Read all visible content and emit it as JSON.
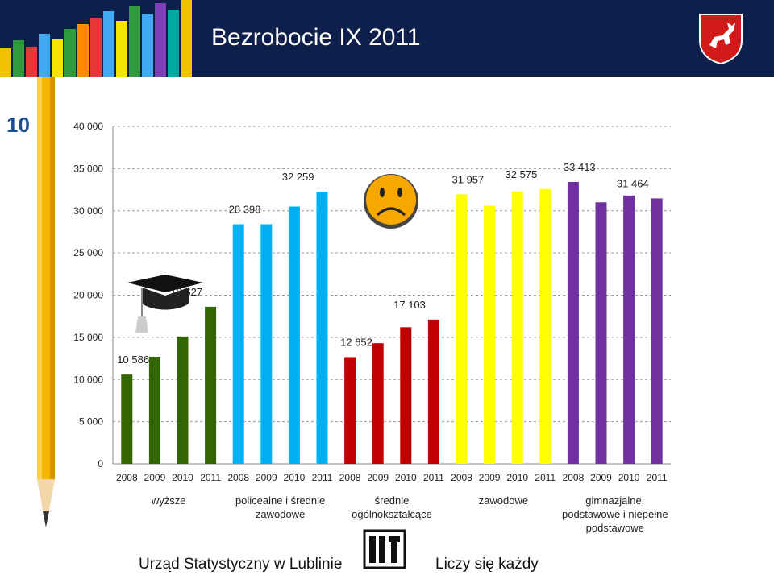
{
  "header": {
    "title": "Bezrobocie IX 2011"
  },
  "slide_number": "10",
  "footer": {
    "left": "Urząd Statystyczny w Lublinie",
    "right": "Liczy się każdy"
  },
  "colors": {
    "header_bg": "#0f1f4b",
    "green": "#336600",
    "blue": "#00b0f0",
    "red": "#c00000",
    "yellow": "#ffff00",
    "purple": "#7030a0"
  },
  "icons": [
    "graduation-cap-icon",
    "sad-face-icon",
    "voivodeship-crest-icon",
    "ustat-logo-icon"
  ],
  "chart_data": {
    "type": "bar",
    "ylim": [
      0,
      40000
    ],
    "yticks": [
      0,
      5000,
      10000,
      15000,
      20000,
      25000,
      30000,
      35000,
      40000
    ],
    "ytick_labels": [
      "0",
      "5 000",
      "10 000",
      "15 000",
      "20 000",
      "25 000",
      "30 000",
      "35 000",
      "40 000"
    ],
    "grid": true,
    "years": [
      "2008",
      "2009",
      "2010",
      "2011"
    ],
    "series": [
      {
        "name": "wyższe",
        "label_lines": [
          "wyższe"
        ],
        "color": "#336600",
        "values": [
          10586,
          12700,
          15100,
          18627
        ],
        "data_labels": [
          "10 586",
          "",
          "",
          "18 627"
        ]
      },
      {
        "name": "policealne i średnie zawodowe",
        "label_lines": [
          "policealne i średnie",
          "zawodowe"
        ],
        "color": "#00b0f0",
        "values": [
          28398,
          28400,
          30500,
          32259
        ],
        "data_labels": [
          "28 398",
          "",
          "",
          "32 259"
        ]
      },
      {
        "name": "średnie ogólnokształcące",
        "label_lines": [
          "średnie",
          "ogólnokształcące"
        ],
        "color": "#c00000",
        "values": [
          12652,
          14300,
          16200,
          17103
        ],
        "data_labels": [
          "12 652",
          "",
          "",
          "17 103"
        ]
      },
      {
        "name": "zawodowe",
        "label_lines": [
          "zawodowe"
        ],
        "color": "#ffff00",
        "values": [
          31957,
          30600,
          32300,
          32575
        ],
        "data_labels": [
          "31 957",
          "",
          "",
          "32 575"
        ]
      },
      {
        "name": "gimnazjalne, podstawowe i niepełne podstawowe",
        "label_lines": [
          "gimnazjalne,",
          "podstawowe i niepełne",
          "podstawowe"
        ],
        "color": "#7030a0",
        "values": [
          33413,
          31000,
          31800,
          31464
        ],
        "data_labels": [
          "33 413",
          "",
          "",
          "31 464"
        ]
      }
    ]
  }
}
